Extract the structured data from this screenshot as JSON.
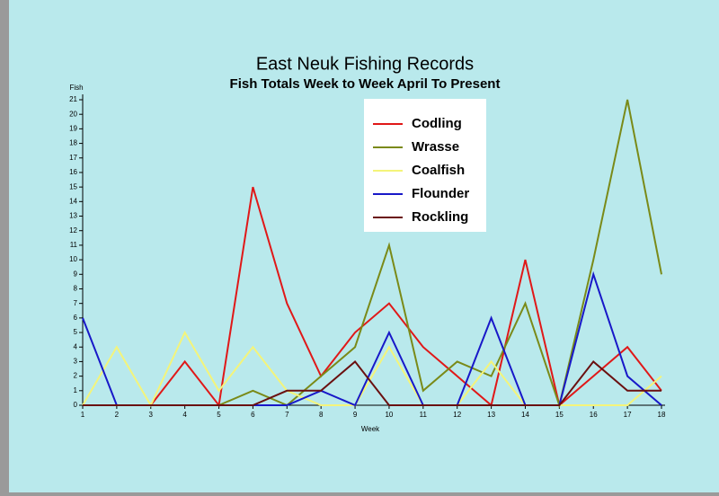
{
  "chart_data": {
    "type": "line",
    "title": "East Neuk Fishing Records",
    "subtitle": "Fish Totals Week to Week April To Present",
    "y_label": "Fish",
    "x_label": "Week",
    "x": [
      1,
      2,
      3,
      4,
      5,
      6,
      7,
      8,
      9,
      10,
      11,
      12,
      13,
      14,
      15,
      16,
      17,
      18
    ],
    "xlim": [
      1,
      18
    ],
    "xticks": [
      1,
      2,
      3,
      4,
      5,
      6,
      7,
      8,
      9,
      10,
      11,
      12,
      13,
      14,
      15,
      16,
      17,
      18
    ],
    "ylim": [
      0,
      21
    ],
    "yticks": [
      0,
      1,
      2,
      3,
      4,
      5,
      6,
      7,
      8,
      9,
      10,
      11,
      12,
      13,
      14,
      15,
      16,
      17,
      18,
      19,
      20,
      21
    ],
    "legend": "top-center",
    "series": [
      {
        "name": "Codling",
        "color": "#e01818",
        "values": [
          0,
          0,
          0,
          3,
          0,
          15,
          7,
          2,
          5,
          7,
          4,
          2,
          0,
          10,
          0,
          2,
          4,
          1
        ]
      },
      {
        "name": "Wrasse",
        "color": "#7a8a18",
        "values": [
          0,
          0,
          0,
          0,
          0,
          1,
          0,
          2,
          4,
          11,
          1,
          3,
          2,
          7,
          0,
          10,
          21,
          9
        ]
      },
      {
        "name": "Coalfish",
        "color": "#f4f47a",
        "values": [
          0,
          4,
          0,
          5,
          1,
          4,
          1,
          0,
          0,
          4,
          0,
          0,
          3,
          0,
          0,
          0,
          0,
          2
        ]
      },
      {
        "name": "Flounder",
        "color": "#1818c8",
        "values": [
          6,
          0,
          0,
          0,
          0,
          0,
          0,
          1,
          0,
          5,
          0,
          0,
          6,
          0,
          0,
          9,
          2,
          0
        ]
      },
      {
        "name": "Rockling",
        "color": "#6a1010",
        "values": [
          0,
          0,
          0,
          0,
          0,
          0,
          1,
          1,
          3,
          0,
          0,
          0,
          0,
          0,
          0,
          3,
          1,
          1
        ]
      }
    ]
  }
}
